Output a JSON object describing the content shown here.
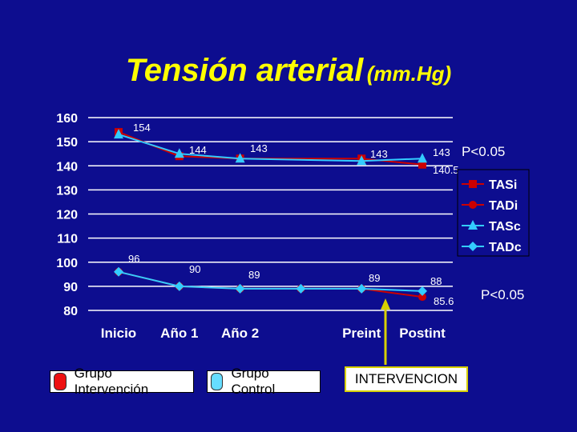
{
  "title": {
    "main": "Tensión arterial",
    "unit": "(mm.Hg)"
  },
  "chart_data": {
    "type": "line",
    "categories": [
      "Inicio",
      "Año 1",
      "Año 2",
      "",
      "Preint",
      "Postint"
    ],
    "ylim": [
      80,
      160
    ],
    "yticks": [
      80,
      90,
      100,
      110,
      120,
      130,
      140,
      150,
      160
    ],
    "series": [
      {
        "name": "TASi",
        "color": "#cc0000",
        "marker": "square",
        "values": [
          154,
          144,
          143,
          null,
          143,
          140.5
        ]
      },
      {
        "name": "TADi",
        "color": "#cc0000",
        "marker": "circle",
        "values": [
          96,
          90,
          89,
          89,
          89,
          85.6
        ]
      },
      {
        "name": "TASc",
        "color": "#33ccff",
        "marker": "triangle",
        "values": [
          153,
          145,
          143,
          null,
          142,
          143
        ]
      },
      {
        "name": "TADc",
        "color": "#33ccff",
        "marker": "diamond",
        "values": [
          96,
          90,
          89,
          89,
          89,
          88
        ]
      }
    ],
    "annotations": [
      {
        "text": "154",
        "series": "TAS",
        "index": 0
      },
      {
        "text": "144",
        "series": "TAS",
        "index": 1
      },
      {
        "text": "143",
        "series": "TAS",
        "index": 2
      },
      {
        "text": "143",
        "series": "TAS",
        "index": 4
      },
      {
        "text": "143",
        "series": "TAS",
        "index": 5
      },
      {
        "text": "140.5",
        "series": "TAS",
        "index": 5
      },
      {
        "text": "96",
        "series": "TAD",
        "index": 0
      },
      {
        "text": "90",
        "series": "TAD",
        "index": 1
      },
      {
        "text": "89",
        "series": "TAD",
        "index": 2
      },
      {
        "text": "89",
        "series": "TAD",
        "index": 4
      },
      {
        "text": "88",
        "series": "TAD",
        "index": 5
      },
      {
        "text": "85.6",
        "series": "TAD",
        "index": 5
      }
    ],
    "legend": [
      "TASi",
      "TADi",
      "TASc",
      "TADc"
    ],
    "legend_position": "right"
  },
  "pvalues": {
    "systolic": "P<0.05",
    "diastolic": "P<0.05"
  },
  "bottom_legend": {
    "intervention": {
      "label": "Grupo Intervención",
      "color": "#ee1111"
    },
    "control": {
      "label": "Grupo Control",
      "color": "#66ddff"
    }
  },
  "intervention_marker": {
    "label": "INTERVENCION",
    "color": "#d8d000"
  }
}
